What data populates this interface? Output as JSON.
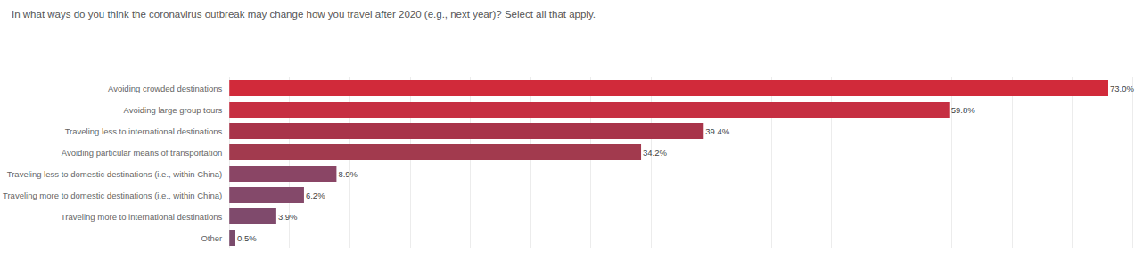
{
  "chart_data": {
    "type": "bar",
    "orientation": "horizontal",
    "title": "In what ways do you think the coronavirus outbreak may change how you travel after 2020 (e.g., next year)? Select all that apply.",
    "categories": [
      "Avoiding crowded destinations",
      "Avoiding large group tours",
      "Traveling less to international destinations",
      "Avoiding particular means of transportation",
      "Traveling less to domestic destinations (i.e., within China)",
      "Traveling more to domestic destinations (i.e., within China)",
      "Traveling more to international destinations",
      "Other"
    ],
    "values": [
      73.0,
      59.8,
      39.4,
      34.2,
      8.9,
      6.2,
      3.9,
      0.5
    ],
    "value_labels": [
      "73.0%",
      "59.8%",
      "39.4%",
      "34.2%",
      "8.9%",
      "6.2%",
      "3.9%",
      "0.5%"
    ],
    "colors": [
      "#d12a3a",
      "#c62f42",
      "#a8344a",
      "#a23a4e",
      "#8a4565",
      "#84496a",
      "#7f4a6c",
      "#7a4b6c"
    ],
    "xlim": [
      0,
      75
    ],
    "xticks": [
      0,
      5,
      10,
      15,
      20,
      25,
      30,
      35,
      40,
      45,
      50,
      55,
      60,
      65,
      70,
      75
    ],
    "grid": true,
    "data_labels": true,
    "tick_labels": "y"
  }
}
